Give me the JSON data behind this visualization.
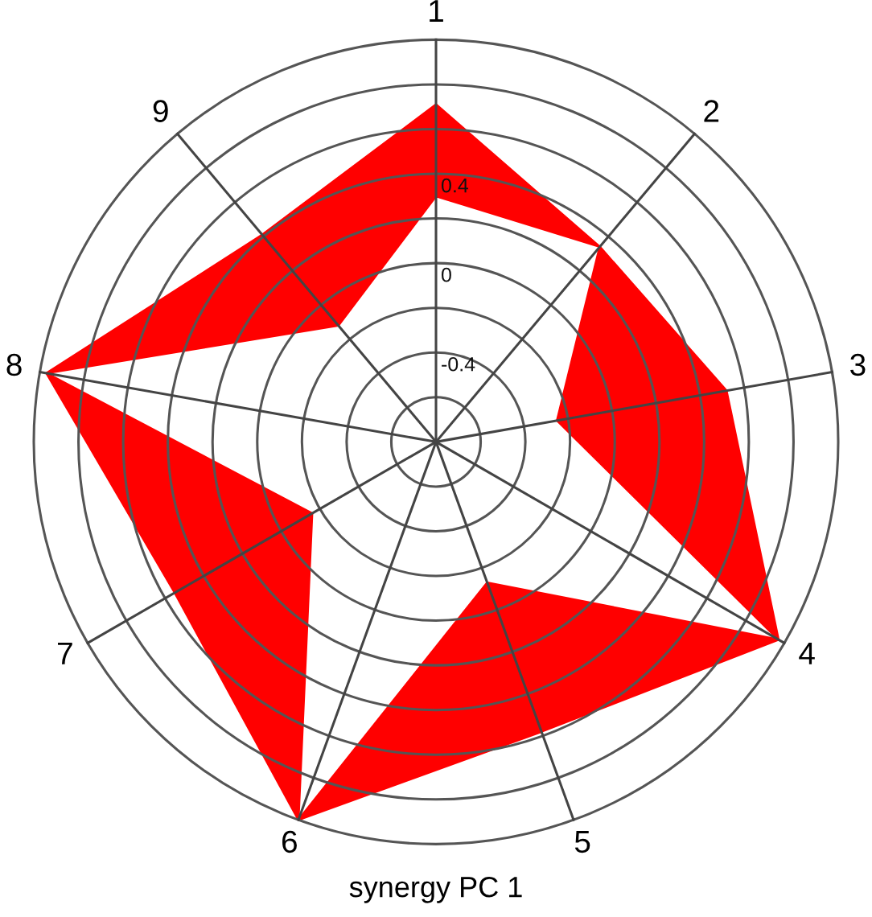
{
  "chart_data": {
    "type": "radar",
    "xlabel": "synergy PC 1",
    "categories": [
      "1",
      "2",
      "3",
      "4",
      "5",
      "6",
      "7",
      "8",
      "9"
    ],
    "series": [
      {
        "color": "#ff0000",
        "values": [
          0.71,
          0.34,
          0.52,
          0.97,
          0.58,
          1.0,
          0.55,
          0.97,
          0.41
        ]
      },
      {
        "color": "#ff0000",
        "values": [
          0.3,
          0.34,
          -0.25,
          0.97,
          -0.13,
          1.0,
          -0.16,
          0.97,
          -0.12
        ]
      }
    ],
    "ylim": [
      -0.8,
      1.0
    ],
    "yticks": [
      -0.4,
      0,
      0.4
    ],
    "grid": true
  }
}
